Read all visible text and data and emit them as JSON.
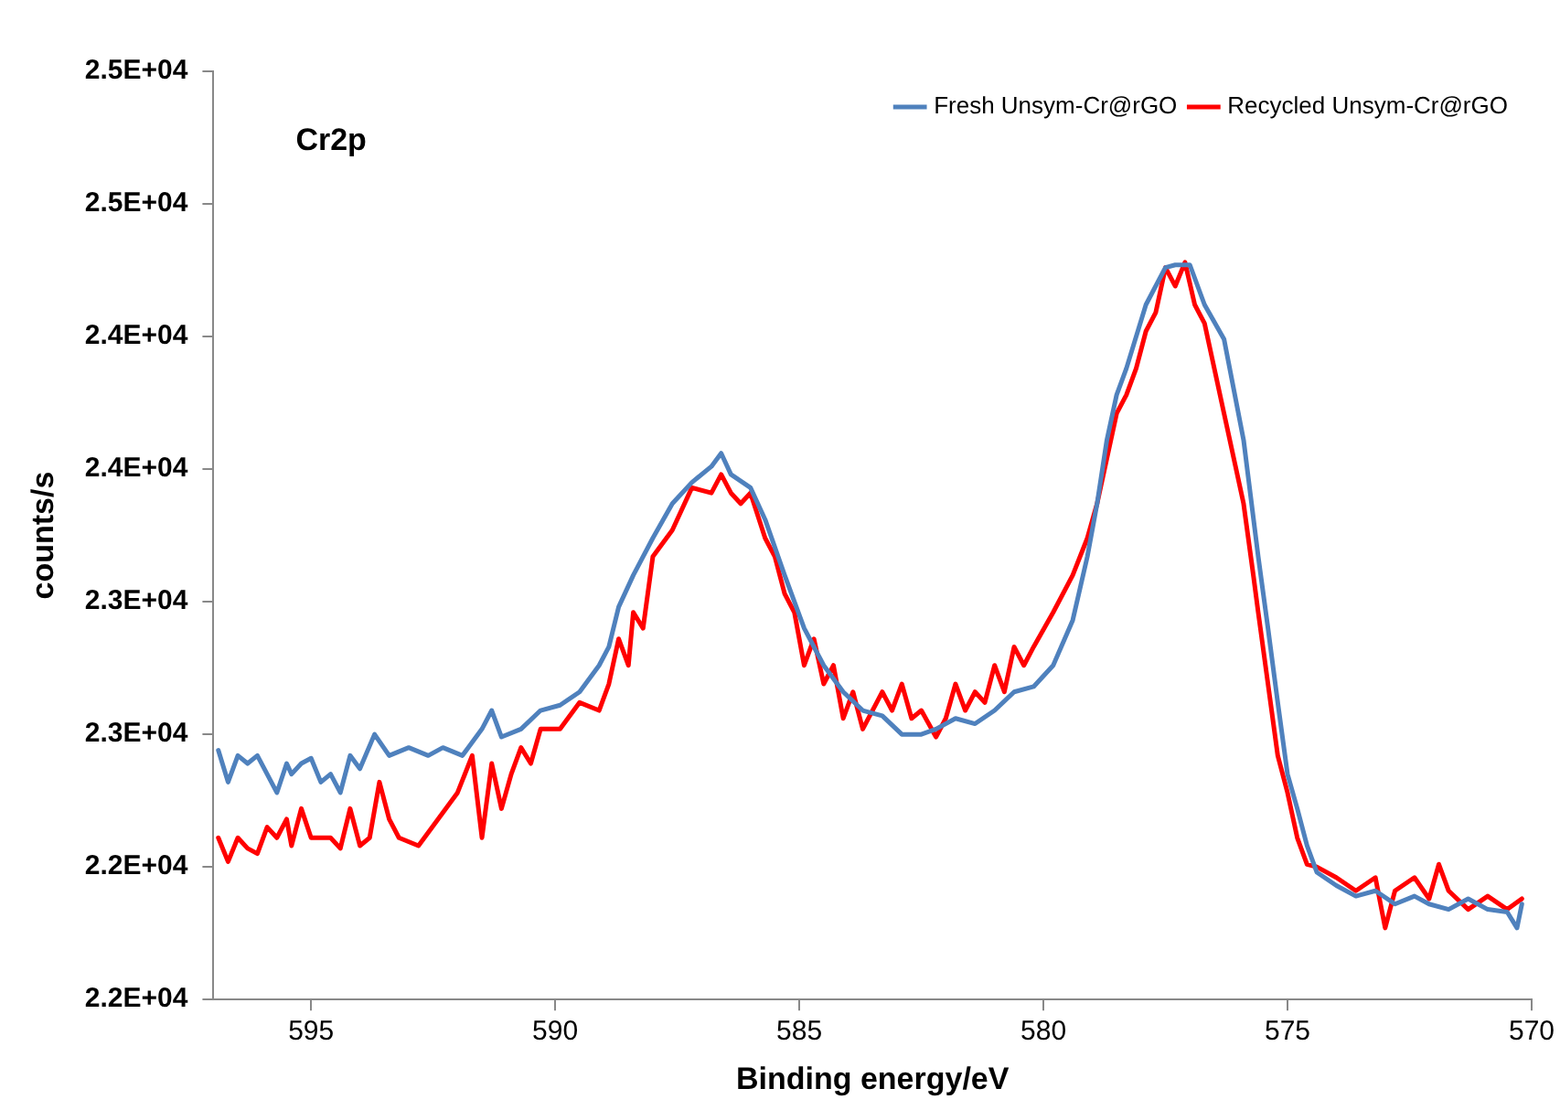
{
  "chart_data": {
    "type": "line",
    "xlabel": "Binding energy/eV",
    "ylabel": "counts/s",
    "annotations": [
      "Cr2p"
    ],
    "xlim": [
      597,
      570
    ],
    "xticks": [
      595,
      590,
      585,
      580,
      575,
      570
    ],
    "ylim": [
      21500,
      25000
    ],
    "yticks": [
      {
        "value": 21500,
        "label": "2.2E+04"
      },
      {
        "value": 22000,
        "label": "2.2E+04"
      },
      {
        "value": 22500,
        "label": "2.3E+04"
      },
      {
        "value": 23000,
        "label": "2.3E+04"
      },
      {
        "value": 23500,
        "label": "2.4E+04"
      },
      {
        "value": 24000,
        "label": "2.4E+04"
      },
      {
        "value": 24500,
        "label": "2.5E+04"
      },
      {
        "value": 25000,
        "label": "2.5E+04"
      }
    ],
    "grid": false,
    "legend": "top right",
    "marker": "none",
    "line_style": "solid",
    "series": [
      {
        "name": "Fresh Unsym-Cr@rGO",
        "color": "#4f81bd",
        "x": [
          596.9,
          596.7,
          596.5,
          596.3,
          596.1,
          595.9,
          595.7,
          595.5,
          595.4,
          595.2,
          595.0,
          594.8,
          594.6,
          594.4,
          594.2,
          594.0,
          593.7,
          593.4,
          593.0,
          592.6,
          592.3,
          591.9,
          591.5,
          591.3,
          591.1,
          590.7,
          590.3,
          589.9,
          589.5,
          589.1,
          588.9,
          588.7,
          588.4,
          588.0,
          587.6,
          587.2,
          586.8,
          586.6,
          586.4,
          586.0,
          585.7,
          585.3,
          584.9,
          584.5,
          584.1,
          583.7,
          583.3,
          582.9,
          582.5,
          582.2,
          581.8,
          581.4,
          581.0,
          580.6,
          580.2,
          579.8,
          579.4,
          579.1,
          578.9,
          578.7,
          578.5,
          578.3,
          577.9,
          577.5,
          577.3,
          577.0,
          576.7,
          576.3,
          575.9,
          575.6,
          575.4,
          575.2,
          575.0,
          574.8,
          574.6,
          574.4,
          574.0,
          573.6,
          573.2,
          572.8,
          572.4,
          572.1,
          571.7,
          571.3,
          570.9,
          570.5,
          570.3,
          570.2
        ],
        "values": [
          22440,
          22320,
          22420,
          22390,
          22420,
          22350,
          22280,
          22390,
          22350,
          22390,
          22410,
          22320,
          22350,
          22280,
          22420,
          22370,
          22500,
          22420,
          22450,
          22420,
          22450,
          22420,
          22520,
          22590,
          22490,
          22520,
          22590,
          22610,
          22660,
          22760,
          22830,
          22980,
          23100,
          23240,
          23370,
          23450,
          23510,
          23560,
          23480,
          23430,
          23310,
          23100,
          22900,
          22760,
          22660,
          22590,
          22570,
          22500,
          22500,
          22520,
          22560,
          22540,
          22590,
          22660,
          22680,
          22760,
          22930,
          23170,
          23370,
          23610,
          23780,
          23880,
          24120,
          24260,
          24270,
          24270,
          24120,
          23990,
          23610,
          23170,
          22900,
          22620,
          22350,
          22220,
          22080,
          21980,
          21930,
          21890,
          21910,
          21860,
          21890,
          21860,
          21840,
          21880,
          21840,
          21830,
          21770,
          21860
        ]
      },
      {
        "name": "Recycled Unsym-Cr@rGO",
        "color": "#ff0000",
        "x": [
          596.9,
          596.7,
          596.5,
          596.3,
          596.1,
          595.9,
          595.7,
          595.5,
          595.4,
          595.2,
          595.0,
          594.6,
          594.4,
          594.2,
          594.0,
          593.8,
          593.6,
          593.4,
          593.2,
          592.8,
          592.4,
          592.0,
          591.7,
          591.5,
          591.3,
          591.1,
          590.9,
          590.7,
          590.5,
          590.3,
          589.9,
          589.5,
          589.1,
          588.9,
          588.7,
          588.5,
          588.4,
          588.2,
          588.0,
          587.6,
          587.2,
          586.8,
          586.6,
          586.4,
          586.2,
          586.0,
          585.7,
          585.5,
          585.3,
          585.1,
          584.9,
          584.7,
          584.5,
          584.3,
          584.1,
          583.9,
          583.7,
          583.3,
          583.1,
          582.9,
          582.7,
          582.5,
          582.2,
          582.0,
          581.8,
          581.6,
          581.4,
          581.2,
          581.0,
          580.8,
          580.6,
          580.4,
          580.2,
          579.8,
          579.4,
          579.1,
          578.9,
          578.7,
          578.5,
          578.3,
          578.1,
          577.9,
          577.7,
          577.5,
          577.3,
          577.1,
          576.9,
          576.7,
          576.3,
          575.9,
          575.7,
          575.6,
          575.4,
          575.2,
          575.0,
          574.8,
          574.6,
          574.4,
          574.0,
          573.6,
          573.2,
          573.0,
          572.8,
          572.4,
          572.1,
          571.9,
          571.7,
          571.3,
          570.9,
          570.5,
          570.2
        ],
        "values": [
          22110,
          22020,
          22110,
          22070,
          22050,
          22150,
          22110,
          22180,
          22080,
          22220,
          22110,
          22110,
          22070,
          22220,
          22080,
          22110,
          22320,
          22180,
          22110,
          22080,
          22180,
          22280,
          22420,
          22110,
          22390,
          22220,
          22350,
          22450,
          22390,
          22520,
          22520,
          22620,
          22590,
          22690,
          22860,
          22760,
          22960,
          22900,
          23170,
          23270,
          23430,
          23410,
          23480,
          23410,
          23370,
          23410,
          23240,
          23170,
          23030,
          22960,
          22760,
          22860,
          22690,
          22760,
          22560,
          22660,
          22520,
          22660,
          22590,
          22690,
          22560,
          22590,
          22490,
          22560,
          22690,
          22590,
          22660,
          22620,
          22760,
          22660,
          22830,
          22760,
          22830,
          22960,
          23100,
          23240,
          23370,
          23540,
          23710,
          23780,
          23880,
          24020,
          24090,
          24260,
          24190,
          24280,
          24120,
          24050,
          23710,
          23370,
          23100,
          22960,
          22690,
          22420,
          22280,
          22110,
          22010,
          22000,
          21960,
          21910,
          21960,
          21770,
          21910,
          21960,
          21880,
          22010,
          21910,
          21840,
          21890,
          21840,
          21880
        ]
      }
    ]
  }
}
